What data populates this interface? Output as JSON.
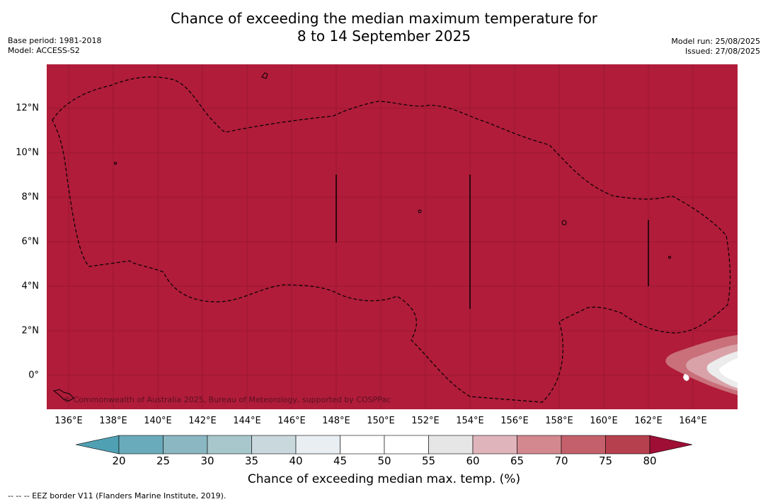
{
  "header": {
    "title_line1": "Chance of exceeding the median maximum temperature for",
    "title_line2": "8 to 14 September 2025",
    "base_period": "Base period: 1981-2018",
    "model": "Model: ACCESS-S2",
    "model_run": "Model run: 25/08/2025",
    "issued": "Issued: 27/08/2025"
  },
  "map": {
    "longitude_labels": [
      "136°E",
      "138°E",
      "140°E",
      "142°E",
      "144°E",
      "146°E",
      "148°E",
      "150°E",
      "152°E",
      "154°E",
      "156°E",
      "158°E",
      "160°E",
      "162°E",
      "164°E"
    ],
    "latitude_labels": [
      "12°N",
      "10°N",
      "8°N",
      "6°N",
      "4°N",
      "2°N",
      "0°"
    ],
    "background_color": "#b01c3a",
    "copyright": "© Commonwealth of Australia 2025, Bureau of Meteorology, supported by COSPPac",
    "border_legend": "-- -- -- EEZ border V11 (Flanders Marine Institute, 2019)."
  },
  "colorbar": {
    "label": "Chance of exceeding median max. temp. (%)",
    "ticks": [
      "20",
      "25",
      "30",
      "35",
      "40",
      "45",
      "50",
      "55",
      "60",
      "65",
      "70",
      "75",
      "80"
    ],
    "colors": [
      "#4fa0b3",
      "#6aabbb",
      "#8ab7c2",
      "#a8c7cc",
      "#c9d8dc",
      "#e8eef1",
      "#ffffff",
      "#ffffff",
      "#e6e6e6",
      "#dfb5bb",
      "#d3888f",
      "#c4606b",
      "#b7404f",
      "#9e0e35"
    ]
  }
}
